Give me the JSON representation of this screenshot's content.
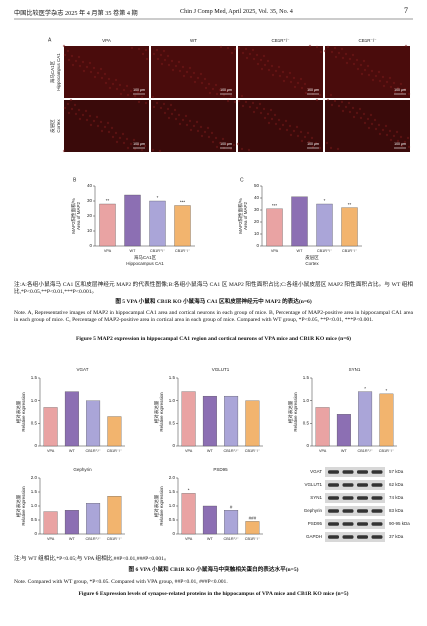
{
  "header": {
    "left": "中国比较医学杂志 2025 年 4 月第 35 卷第 4 期",
    "right": "Chin J Comp Med, April 2025, Vol. 35, No. 4",
    "page": "7"
  },
  "figure5": {
    "panel_a": {
      "label": "A",
      "columns": [
        "VPA",
        "WT",
        "CB1R⁺/⁻",
        "CB1R⁻/⁻"
      ],
      "rows": [
        {
          "cn": "海马CA1区",
          "en": "Hippocampus CA1"
        },
        {
          "cn": "皮层区",
          "en": "Cortex"
        }
      ],
      "scale_bar": "100 μm"
    },
    "colors": [
      "#e9a3a3",
      "#8c6fb3",
      "#aaa5d8",
      "#f2b46e"
    ],
    "charts": [
      {
        "panel": "B",
        "type": "bar",
        "ylabel_cn": "MAP2阳性面积/%",
        "ylabel_en": "Area of MAP2",
        "xlabel_cn": "海马CA1区",
        "xlabel_en": "Hippocampus CA1",
        "categories": [
          "VPA",
          "WT",
          "CB1R⁺/⁻",
          "CB1R⁻/⁻"
        ],
        "values": [
          28,
          34,
          30,
          27
        ],
        "sig_labels": [
          "**",
          null,
          "*",
          "***"
        ],
        "ylim": [
          0,
          40
        ],
        "yticks": [
          0,
          10,
          20,
          30,
          40
        ]
      },
      {
        "panel": "C",
        "type": "bar",
        "ylabel_cn": "MAP2阳性面积/%",
        "ylabel_en": "Area of MAP2",
        "xlabel_cn": "皮层区",
        "xlabel_en": "Cortex",
        "categories": [
          "VPA",
          "WT",
          "CB1R⁺/⁻",
          "CB1R⁻/⁻"
        ],
        "values": [
          31,
          41,
          35,
          32
        ],
        "sig_labels": [
          "***",
          null,
          "*",
          "**"
        ],
        "ylim": [
          0,
          50
        ],
        "yticks": [
          0,
          10,
          20,
          30,
          40,
          50
        ]
      }
    ],
    "note_cn": "注:A:各组小鼠海马 CA1 区和皮层神经元 MAP2 的代表性图像;B:各组小鼠海马 CA1 区 MAP2 阳性面积占比;C:各组小鼠皮层区 MAP2 阳性面积占比。与 WT 组相比,*P<0.05,**P<0.01,***P<0.001。",
    "title_cn": "图 5  VPA 小鼠和 CB1R KO 小鼠海马 CA1 区和皮层神经元中 MAP2 的表达(n=6)",
    "note_en": "Note. A, Representative images of MAP2 in hippocampal CA1 area and cortical neurons in each group of mice. B, Percentage of MAP2-positive area in hippocampal CA1 area in each group of mice. C, Percentage of MAP2-positive area in cortical area in each group of mice. Compared with WT group, *P<0.05, **P<0.01, ***P<0.001.",
    "title_en": "Figure 5  MAP2 expression in hippocampal CA1 region and cortical neurons of VPA mice and CB1R KO mice (n=6)"
  },
  "figure6": {
    "colors": [
      "#e9a3a3",
      "#8c6fb3",
      "#aaa5d8",
      "#f2b46e"
    ],
    "charts": [
      {
        "title": "VGAT",
        "type": "bar",
        "ylabel_cn": "相对表达量",
        "ylabel_en": "Relative expression",
        "categories": [
          "VPA",
          "WT",
          "CB1R⁺/⁻",
          "CB1R⁻/⁻"
        ],
        "values": [
          0.85,
          1.2,
          1.0,
          0.65
        ],
        "sig_labels": [
          null,
          null,
          null,
          null
        ],
        "ylim": [
          0,
          1.5
        ],
        "yticks": [
          0,
          0.5,
          {
            "value": 1,
            "label": "1.0"
          },
          1.5
        ]
      },
      {
        "title": "VGLUT1",
        "type": "bar",
        "ylabel_cn": "相对表达量",
        "ylabel_en": "Relative expression",
        "categories": [
          "VPA",
          "WT",
          "CB1R⁺/⁻",
          "CB1R⁻/⁻"
        ],
        "values": [
          1.2,
          1.1,
          1.1,
          1.0
        ],
        "sig_labels": [
          null,
          null,
          null,
          null
        ],
        "ylim": [
          0,
          1.5
        ],
        "yticks": [
          0,
          0.5,
          {
            "value": 1,
            "label": "1.0"
          },
          1.5
        ]
      },
      {
        "title": "SYN1",
        "type": "bar",
        "ylabel_cn": "相对表达量",
        "ylabel_en": "Relative expression",
        "categories": [
          "VPA",
          "WT",
          "CB1R⁺/⁻",
          "CB1R⁻/⁻"
        ],
        "values": [
          0.85,
          0.7,
          1.2,
          1.15
        ],
        "sig_labels": [
          null,
          null,
          "*",
          "*"
        ],
        "ylim": [
          0,
          1.5
        ],
        "yticks": [
          0,
          0.5,
          {
            "value": 1,
            "label": "1.0"
          },
          1.5
        ]
      },
      {
        "title": "Gephyrin",
        "type": "bar",
        "ylabel_cn": "相对表达量",
        "ylabel_en": "Relative expression",
        "categories": [
          "VPA",
          "WT",
          "CB1R⁺/⁻",
          "CB1R⁻/⁻"
        ],
        "values": [
          0.8,
          0.85,
          1.1,
          1.35
        ],
        "sig_labels": [
          null,
          null,
          null,
          null
        ],
        "ylim": [
          0,
          2
        ],
        "yticks": [
          0,
          0.5,
          {
            "value": 1,
            "label": "1.0"
          },
          1.5,
          {
            "value": 2,
            "label": "2.0"
          }
        ]
      },
      {
        "title": "PSD95",
        "type": "bar",
        "ylabel_cn": "相对表达量",
        "ylabel_en": "Relative expression",
        "categories": [
          "VPA",
          "WT",
          "CB1R⁺/⁻",
          "CB1R⁻/⁻"
        ],
        "values": [
          1.45,
          1.0,
          0.85,
          0.45
        ],
        "sig_labels": [
          "*",
          null,
          "#",
          "###"
        ],
        "ylim": [
          0,
          2
        ],
        "yticks": [
          0,
          0.5,
          {
            "value": 1,
            "label": "1.0"
          },
          1.5,
          {
            "value": 2,
            "label": "2.0"
          }
        ]
      }
    ],
    "blot": [
      {
        "protein": "VGAT",
        "size": "57 kDa"
      },
      {
        "protein": "VGLUT1",
        "size": "62 kDa"
      },
      {
        "protein": "SYN1",
        "size": "74 kDa"
      },
      {
        "protein": "Gephyrin",
        "size": "83 kDa"
      },
      {
        "protein": "PSD95",
        "size": "90-95 kDa"
      },
      {
        "protein": "GAPDH",
        "size": "37 kDa"
      }
    ],
    "note_cn": "注:与 WT 组相比,*P<0.05;与 VPA 组相比,##P<0.01,###P<0.001。",
    "title_cn": "图 6  VPA 小鼠和 CB1R KO 小鼠海马中突触相关蛋白的表达水平(n=5)",
    "note_en": "Note. Compared with WT group, *P<0.05. Compared with VPA group, ##P<0.01, ###P<0.001.",
    "title_en": "Figure 6  Expression levels of synapse-related proteins in the hippocampus of VPA mice and CB1R KO mice (n=5)"
  }
}
